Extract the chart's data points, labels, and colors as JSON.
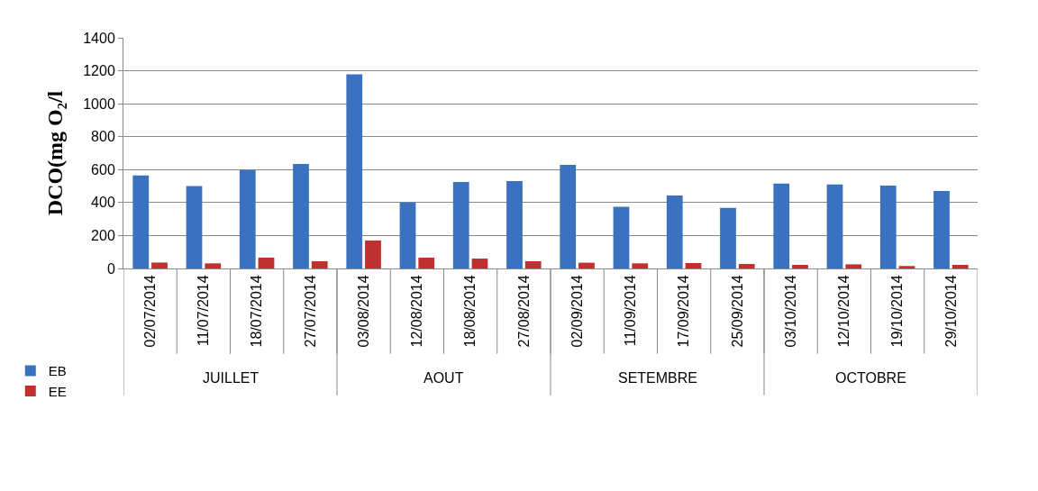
{
  "chart_data": {
    "type": "bar",
    "ylabel": "DCO(mg O₂/l",
    "categories": [
      "02/07/2014",
      "11/07/2014",
      "18/07/2014",
      "27/07/2014",
      "03/08/2014",
      "12/08/2014",
      "18/08/2014",
      "27/08/2014",
      "02/09/2014",
      "11/09/2014",
      "17/09/2014",
      "25/09/2014",
      "03/10/2014",
      "12/10/2014",
      "19/10/2014",
      "29/10/2014"
    ],
    "series": [
      {
        "name": "EB",
        "color": "#3a72c0",
        "values": [
          565,
          501,
          598,
          634,
          1178,
          401,
          525,
          530,
          629,
          374,
          443,
          368,
          516,
          510,
          503,
          470
        ]
      },
      {
        "name": "EE",
        "color": "#c0302e",
        "values": [
          36,
          31,
          66,
          44,
          170,
          66,
          60,
          44,
          35,
          31,
          33,
          27,
          22,
          25,
          15,
          22
        ]
      }
    ],
    "annotations": [
      "JUILLET",
      "AOUT",
      "SETEMBRE",
      "OCTOBRE"
    ],
    "ylim": [
      0,
      1400
    ],
    "yticks": [
      0,
      200,
      400,
      600,
      800,
      1000,
      1200,
      1400
    ],
    "grid": "y",
    "legend": "left"
  }
}
